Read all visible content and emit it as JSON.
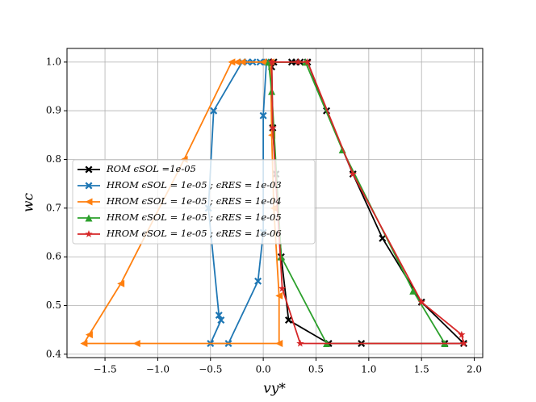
{
  "chart_data": {
    "type": "line",
    "x_label": "vy*",
    "y_label": "wc",
    "xlim": [
      -1.86,
      2.08
    ],
    "ylim": [
      0.393,
      1.028
    ],
    "xticks": [
      {
        "value": -1.5,
        "label": "−1.5"
      },
      {
        "value": -1.0,
        "label": "−1.0"
      },
      {
        "value": -0.5,
        "label": "−0.5"
      },
      {
        "value": 0,
        "label": "0.0"
      },
      {
        "value": 0.5,
        "label": "0.5"
      },
      {
        "value": 1.0,
        "label": "1.0"
      },
      {
        "value": 1.5,
        "label": "1.5"
      },
      {
        "value": 2.0,
        "label": "2.0"
      }
    ],
    "yticks": [
      {
        "value": 0.4,
        "label": "0.4"
      },
      {
        "value": 0.5,
        "label": "0.5"
      },
      {
        "value": 0.6,
        "label": "0.6"
      },
      {
        "value": 0.7,
        "label": "0.7"
      },
      {
        "value": 0.8,
        "label": "0.8"
      },
      {
        "value": 0.9,
        "label": "0.9"
      },
      {
        "value": 1.0,
        "label": "1.0"
      }
    ],
    "grid": true,
    "legend": "center left",
    "series": [
      {
        "name": "ROM ϵSOL =1e-05",
        "color": "#000000",
        "marker": "X",
        "x": [
          0.05,
          0.1,
          0.27,
          0.31,
          0.35,
          0.42,
          0.6,
          0.85,
          1.13,
          1.5,
          1.9,
          1.72,
          0.93,
          0.62,
          0.24,
          0.17,
          0.12,
          0.09,
          0.08
        ],
        "y": [
          1.0,
          1.0,
          1.0,
          1.0,
          1.0,
          1.0,
          0.9,
          0.77,
          0.638,
          0.507,
          0.422,
          0.422,
          0.422,
          0.422,
          0.47,
          0.6,
          0.77,
          0.865,
          0.99
        ]
      },
      {
        "name": "HROM ϵSOL = 1e-05 ; ϵRES = 1e-03",
        "color": "#1f77b4",
        "marker": "X",
        "x": [
          0.03,
          -0.03,
          -0.1,
          -0.15,
          -0.2,
          -0.47,
          -0.52,
          -0.42,
          -0.4,
          -0.5,
          -0.33,
          -0.05,
          0.0,
          0.0
        ],
        "y": [
          1.0,
          1.0,
          1.0,
          1.0,
          1.0,
          0.9,
          0.7,
          0.48,
          0.47,
          0.422,
          0.422,
          0.55,
          0.65,
          0.89
        ]
      },
      {
        "name": "HROM ϵSOL = 1e-05 ; ϵRES = 1e-04",
        "color": "#ff7f0e",
        "marker": "<",
        "x": [
          0.0,
          -0.2,
          -0.25,
          -0.3,
          -0.75,
          -1.35,
          -1.65,
          -1.7,
          -1.2,
          0.15,
          0.15,
          0.1,
          0.08,
          0.07
        ],
        "y": [
          1.0,
          1.0,
          1.0,
          1.0,
          0.8,
          0.545,
          0.44,
          0.422,
          0.422,
          0.422,
          0.52,
          0.7,
          0.85,
          1.0
        ]
      },
      {
        "name": "HROM ϵSOL = 1e-05 ; ϵRES = 1e-05",
        "color": "#2ca02c",
        "marker": "^",
        "x": [
          0.05,
          0.4,
          0.75,
          1.42,
          1.72,
          0.6,
          0.17,
          0.08
        ],
        "y": [
          1.0,
          1.0,
          0.82,
          0.53,
          0.422,
          0.422,
          0.6,
          0.94
        ]
      },
      {
        "name": "HROM ϵSOL = 1e-05 ; ϵRES = 1e-06",
        "color": "#d62728",
        "marker": "*",
        "x": [
          0.08,
          0.33,
          0.42,
          0.85,
          1.5,
          1.88,
          1.9,
          0.35,
          0.18,
          0.09,
          0.08
        ],
        "y": [
          1.0,
          1.0,
          1.0,
          0.77,
          0.507,
          0.44,
          0.422,
          0.422,
          0.535,
          0.865,
          1.0
        ]
      }
    ]
  }
}
